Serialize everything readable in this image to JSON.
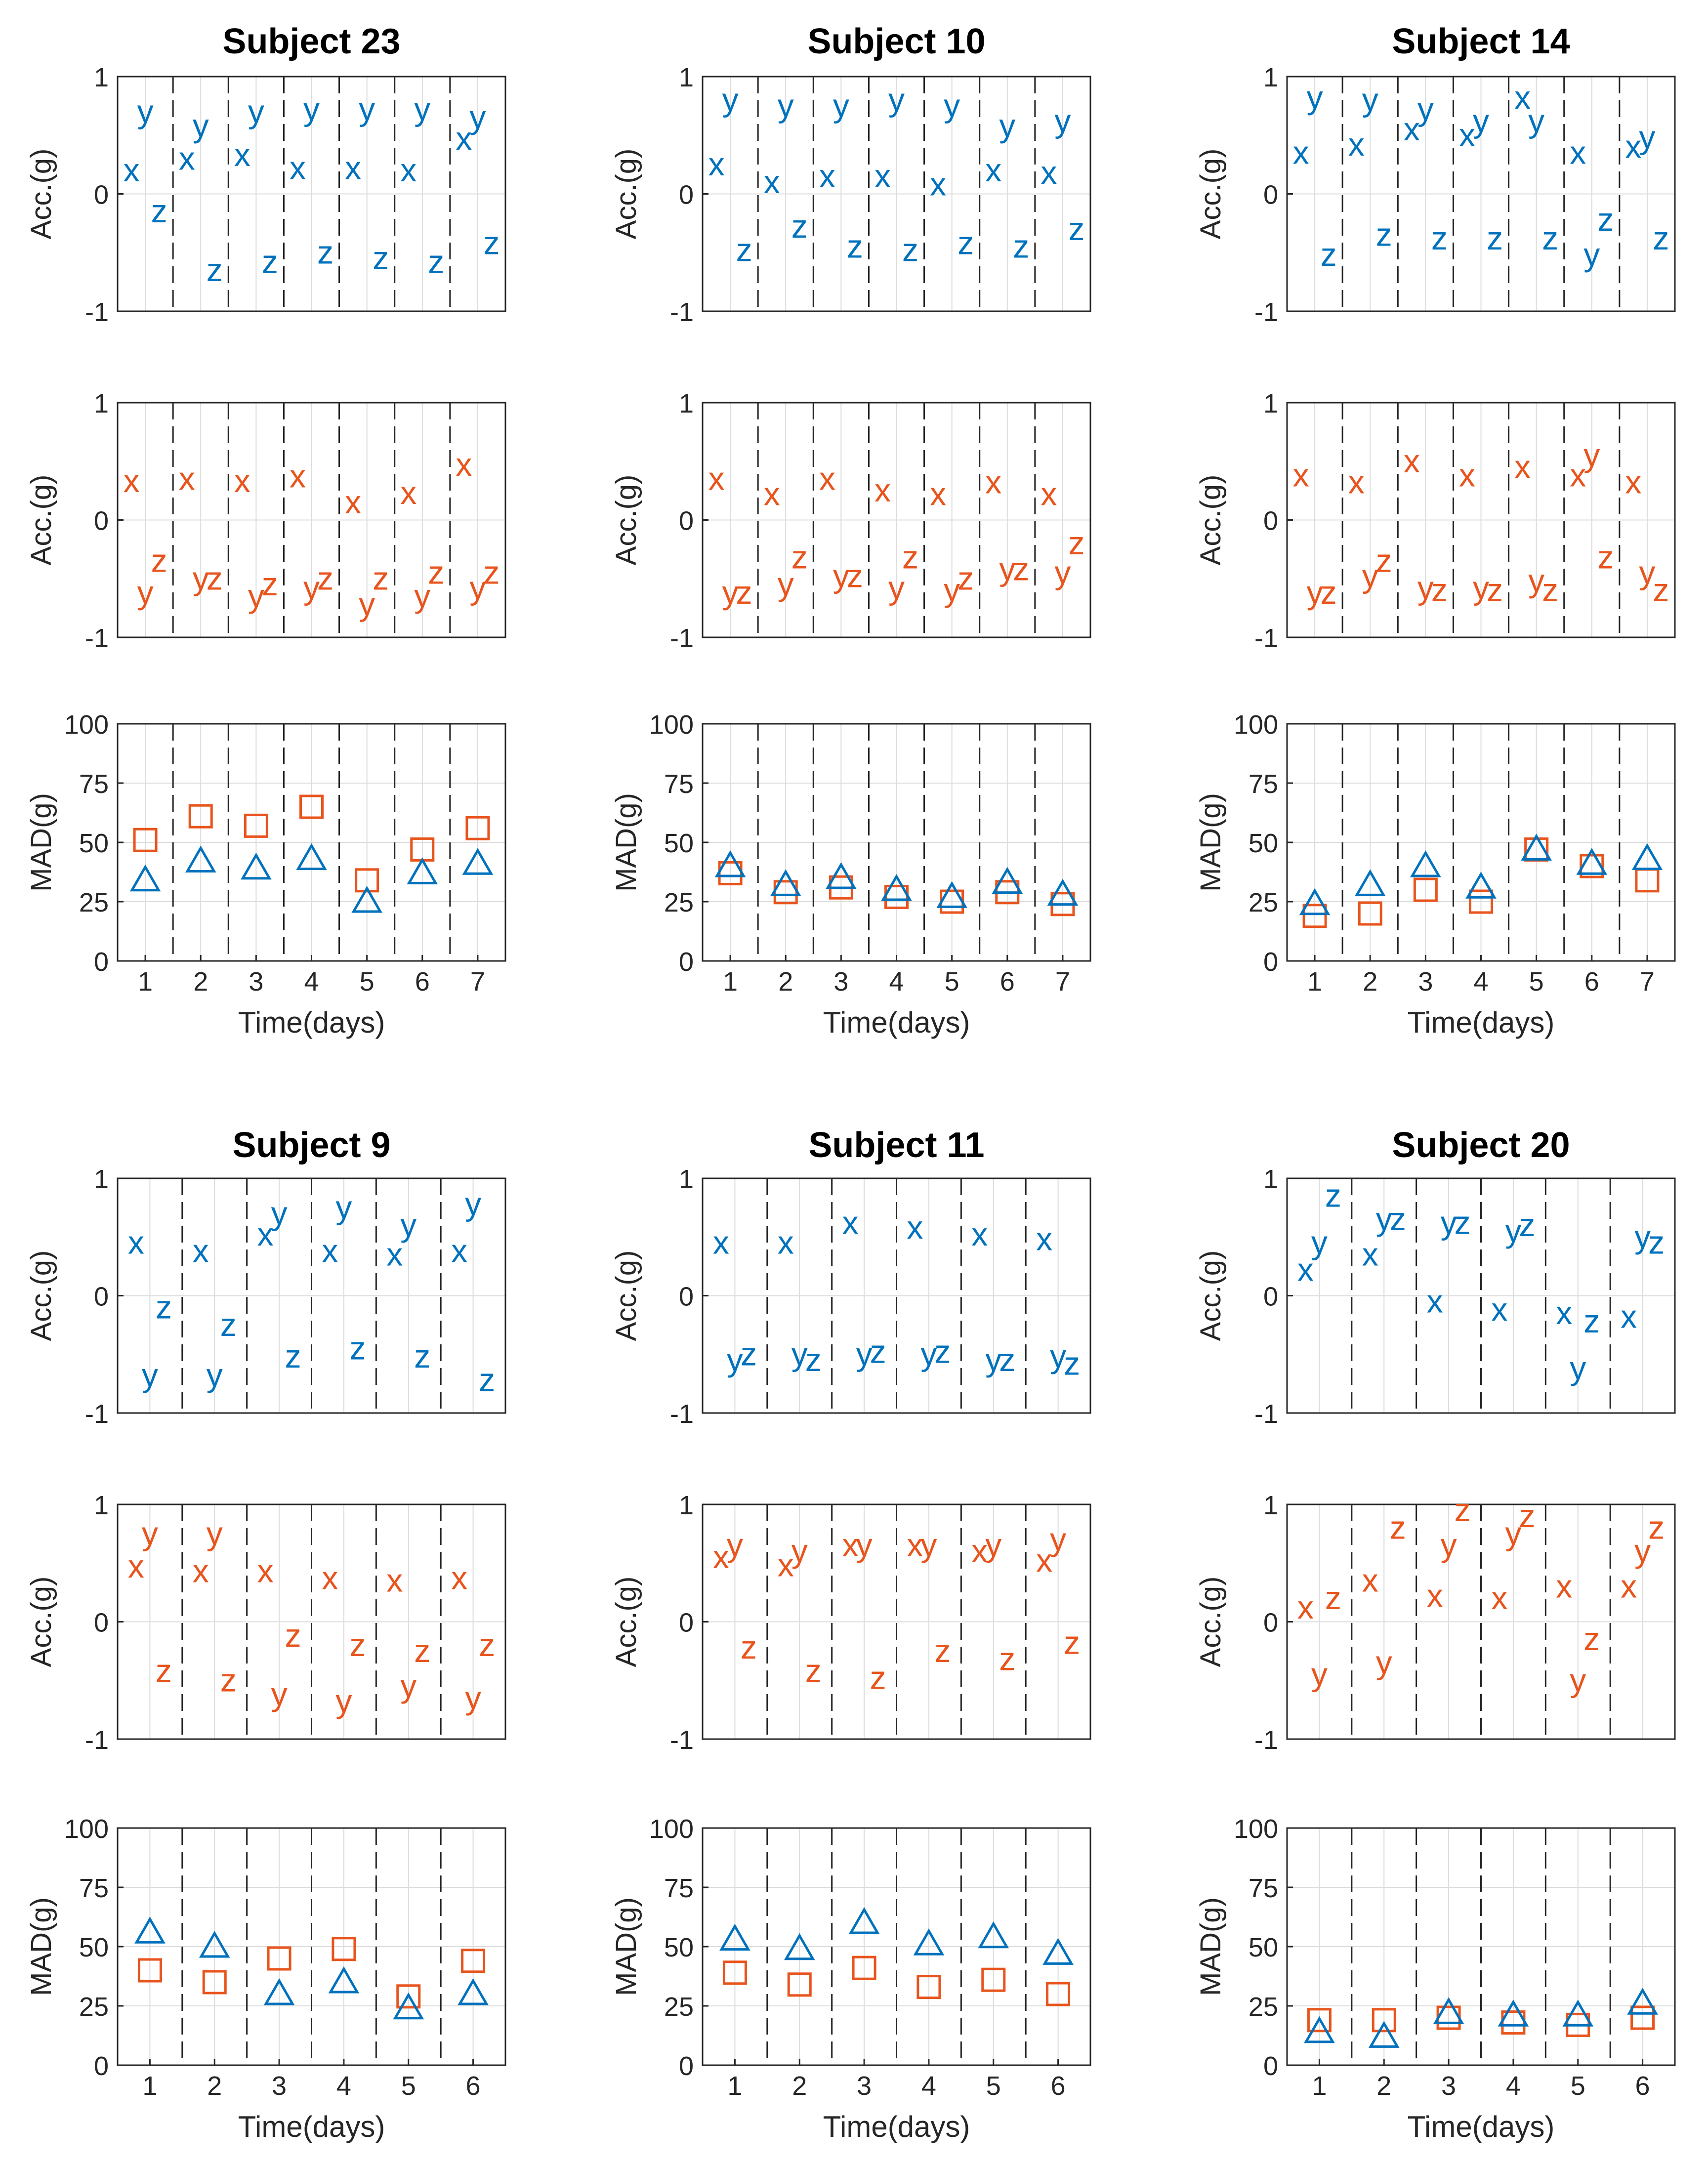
{
  "figure": {
    "colors": {
      "blue": "#0072BD",
      "orange": "#E8541C",
      "grid": "#dcdcdc",
      "axis": "#262626",
      "sep": "#222222"
    },
    "labels": {
      "acc_ylabel": "Acc.(g)",
      "mad_ylabel": "MAD(g)",
      "xlabel": "Time(days)"
    },
    "acc_ticks": [
      "-1",
      "0",
      "1"
    ],
    "mad_ticks": [
      "0",
      "25",
      "50",
      "75",
      "100"
    ],
    "markers": {
      "blue_mad": "triangle-icon",
      "orange_mad": "square-icon"
    }
  },
  "chart_data": [
    {
      "type": "scatter",
      "title": "Subject 23",
      "days": [
        1,
        2,
        3,
        4,
        5,
        6,
        7
      ],
      "acc_blue": {
        "x": [
          0.2,
          0.3,
          0.33,
          0.22,
          0.22,
          0.2,
          0.47
        ],
        "y": [
          0.7,
          0.58,
          0.7,
          0.72,
          0.72,
          0.72,
          0.65
        ],
        "z": [
          -0.15,
          -0.65,
          -0.58,
          -0.5,
          -0.55,
          -0.58,
          -0.42
        ]
      },
      "acc_orange": {
        "x": [
          0.33,
          0.35,
          0.33,
          0.37,
          0.15,
          0.23,
          0.47
        ],
        "y": [
          -0.62,
          -0.5,
          -0.65,
          -0.58,
          -0.72,
          -0.65,
          -0.58
        ],
        "z": [
          -0.35,
          -0.5,
          -0.55,
          -0.5,
          -0.5,
          -0.45,
          -0.45
        ]
      },
      "mad_blue": [
        34,
        42,
        39,
        43,
        25,
        37,
        41
      ],
      "mad_orange": [
        51,
        61,
        57,
        65,
        34,
        47,
        56
      ]
    },
    {
      "type": "scatter",
      "title": "Subject 10",
      "days": [
        1,
        2,
        3,
        4,
        5,
        6,
        7
      ],
      "acc_blue": {
        "x": [
          0.25,
          0.1,
          0.15,
          0.15,
          0.08,
          0.2,
          0.18
        ],
        "y": [
          0.8,
          0.75,
          0.75,
          0.8,
          0.75,
          0.58,
          0.62
        ],
        "z": [
          -0.48,
          -0.28,
          -0.45,
          -0.48,
          -0.42,
          -0.45,
          -0.3
        ]
      },
      "acc_orange": {
        "x": [
          0.35,
          0.22,
          0.35,
          0.25,
          0.22,
          0.32,
          0.22
        ],
        "y": [
          -0.62,
          -0.55,
          -0.48,
          -0.58,
          -0.6,
          -0.42,
          -0.45
        ],
        "z": [
          -0.62,
          -0.32,
          -0.48,
          -0.32,
          -0.5,
          -0.42,
          -0.2
        ]
      },
      "mad_blue": [
        40,
        32,
        35,
        30,
        27,
        33,
        28
      ],
      "mad_orange": [
        37,
        29,
        31,
        27,
        25,
        29,
        24
      ]
    },
    {
      "type": "scatter",
      "title": "Subject 14",
      "days": [
        1,
        2,
        3,
        4,
        5,
        6,
        7
      ],
      "acc_blue": {
        "x": [
          0.35,
          0.42,
          0.55,
          0.5,
          0.82,
          0.35,
          0.4
        ],
        "y": [
          0.82,
          0.8,
          0.72,
          0.62,
          0.62,
          -0.52,
          0.48
        ],
        "z": [
          -0.52,
          -0.35,
          -0.38,
          -0.38,
          -0.38,
          -0.22,
          -0.38
        ]
      },
      "acc_orange": {
        "x": [
          0.38,
          0.32,
          0.5,
          0.38,
          0.45,
          0.38,
          0.32
        ],
        "y": [
          -0.62,
          -0.48,
          -0.58,
          -0.58,
          -0.52,
          0.55,
          -0.45
        ],
        "z": [
          -0.62,
          -0.35,
          -0.6,
          -0.6,
          -0.6,
          -0.32,
          -0.6
        ]
      },
      "mad_blue": [
        24,
        32,
        40,
        31,
        47,
        41,
        43
      ],
      "mad_orange": [
        19,
        20,
        30,
        25,
        47,
        40,
        34
      ]
    },
    {
      "type": "scatter",
      "title": "Subject 9",
      "days": [
        1,
        2,
        3,
        4,
        5,
        6
      ],
      "acc_blue": {
        "x": [
          0.45,
          0.38,
          0.52,
          0.38,
          0.35,
          0.38
        ],
        "y": [
          -0.68,
          -0.68,
          0.7,
          0.75,
          0.6,
          0.78
        ],
        "z": [
          -0.1,
          -0.25,
          -0.52,
          -0.45,
          -0.52,
          -0.72
        ]
      },
      "acc_orange": {
        "x": [
          0.47,
          0.43,
          0.43,
          0.37,
          0.35,
          0.37
        ],
        "y": [
          0.75,
          0.75,
          -0.62,
          -0.68,
          -0.55,
          -0.65
        ],
        "z": [
          -0.42,
          -0.5,
          -0.12,
          -0.2,
          -0.25,
          -0.2
        ]
      },
      "mad_blue": [
        56,
        50,
        30,
        35,
        24,
        30
      ],
      "mad_orange": [
        40,
        35,
        45,
        49,
        29,
        44
      ]
    },
    {
      "type": "scatter",
      "title": "Subject 11",
      "days": [
        1,
        2,
        3,
        4,
        5,
        6
      ],
      "acc_blue": {
        "x": [
          0.45,
          0.45,
          0.62,
          0.58,
          0.52,
          0.48
        ],
        "y": [
          -0.55,
          -0.5,
          -0.5,
          -0.5,
          -0.55,
          -0.52
        ],
        "z": [
          -0.5,
          -0.55,
          -0.48,
          -0.48,
          -0.55,
          -0.58
        ]
      },
      "acc_orange": {
        "x": [
          0.55,
          0.48,
          0.65,
          0.65,
          0.6,
          0.52
        ],
        "y": [
          0.65,
          0.6,
          0.65,
          0.65,
          0.65,
          0.7
        ],
        "z": [
          -0.22,
          -0.42,
          -0.48,
          -0.25,
          -0.32,
          -0.18
        ]
      },
      "mad_blue": [
        53,
        49,
        60,
        51,
        54,
        47
      ],
      "mad_orange": [
        39,
        34,
        41,
        33,
        36,
        30
      ]
    },
    {
      "type": "scatter",
      "title": "Subject 20",
      "days": [
        1,
        2,
        3,
        4,
        5,
        6
      ],
      "acc_blue": {
        "x": [
          0.22,
          0.35,
          -0.05,
          -0.12,
          -0.15,
          -0.18
        ],
        "y": [
          0.45,
          0.65,
          0.62,
          0.55,
          -0.62,
          0.5
        ],
        "z": [
          0.85,
          0.65,
          0.62,
          0.6,
          -0.22,
          0.45
        ]
      },
      "acc_orange": {
        "x": [
          0.12,
          0.35,
          0.22,
          0.2,
          0.3,
          0.3
        ],
        "y": [
          -0.45,
          -0.35,
          0.65,
          0.75,
          -0.5,
          0.6
        ],
        "z": [
          0.2,
          0.8,
          0.95,
          0.9,
          -0.15,
          0.8
        ]
      },
      "mad_blue": [
        14,
        12,
        22,
        21,
        21,
        26
      ],
      "mad_orange": [
        19,
        19,
        20,
        18,
        17,
        20
      ]
    }
  ]
}
